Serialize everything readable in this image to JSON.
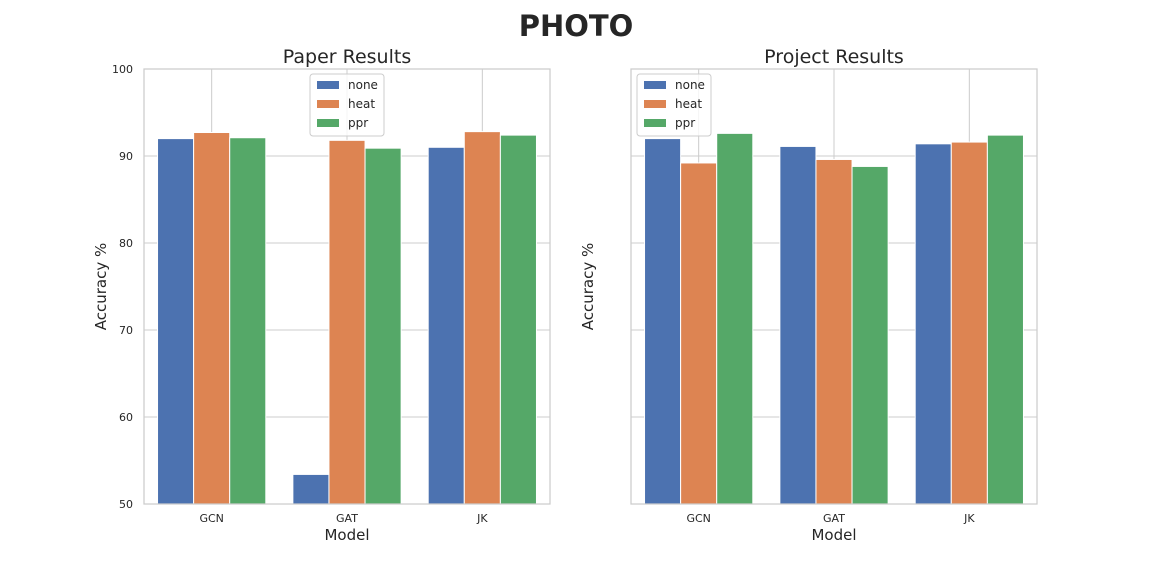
{
  "figure": {
    "suptitle": "PHOTO"
  },
  "colors": {
    "none": "#4c72b0",
    "heat": "#dd8452",
    "ppr": "#55a868",
    "grid": "#cccccc",
    "spine": "#cccccc",
    "text": "#262626"
  },
  "chart_data": [
    {
      "type": "bar",
      "title": "Paper Results",
      "xlabel": "Model",
      "ylabel": "Accuracy %",
      "categories": [
        "GCN",
        "GAT",
        "JK"
      ],
      "ylim": [
        50,
        100
      ],
      "yticks": [
        50,
        60,
        70,
        80,
        90,
        100
      ],
      "show_yticklabels": true,
      "grid": true,
      "legend_position": "upper center",
      "series": [
        {
          "name": "none",
          "values": [
            92.0,
            53.4,
            91.0
          ]
        },
        {
          "name": "heat",
          "values": [
            92.7,
            91.8,
            92.8
          ]
        },
        {
          "name": "ppr",
          "values": [
            92.1,
            90.9,
            92.4
          ]
        }
      ]
    },
    {
      "type": "bar",
      "title": "Project Results",
      "xlabel": "Model",
      "ylabel": "Accuracy %",
      "categories": [
        "GCN",
        "GAT",
        "JK"
      ],
      "ylim": [
        50,
        100
      ],
      "yticks": [
        50,
        60,
        70,
        80,
        90,
        100
      ],
      "show_yticklabels": false,
      "grid": true,
      "legend_position": "upper left",
      "series": [
        {
          "name": "none",
          "values": [
            92.0,
            91.1,
            91.4
          ]
        },
        {
          "name": "heat",
          "values": [
            89.2,
            89.6,
            91.6
          ]
        },
        {
          "name": "ppr",
          "values": [
            92.6,
            88.8,
            92.4
          ]
        }
      ]
    }
  ]
}
